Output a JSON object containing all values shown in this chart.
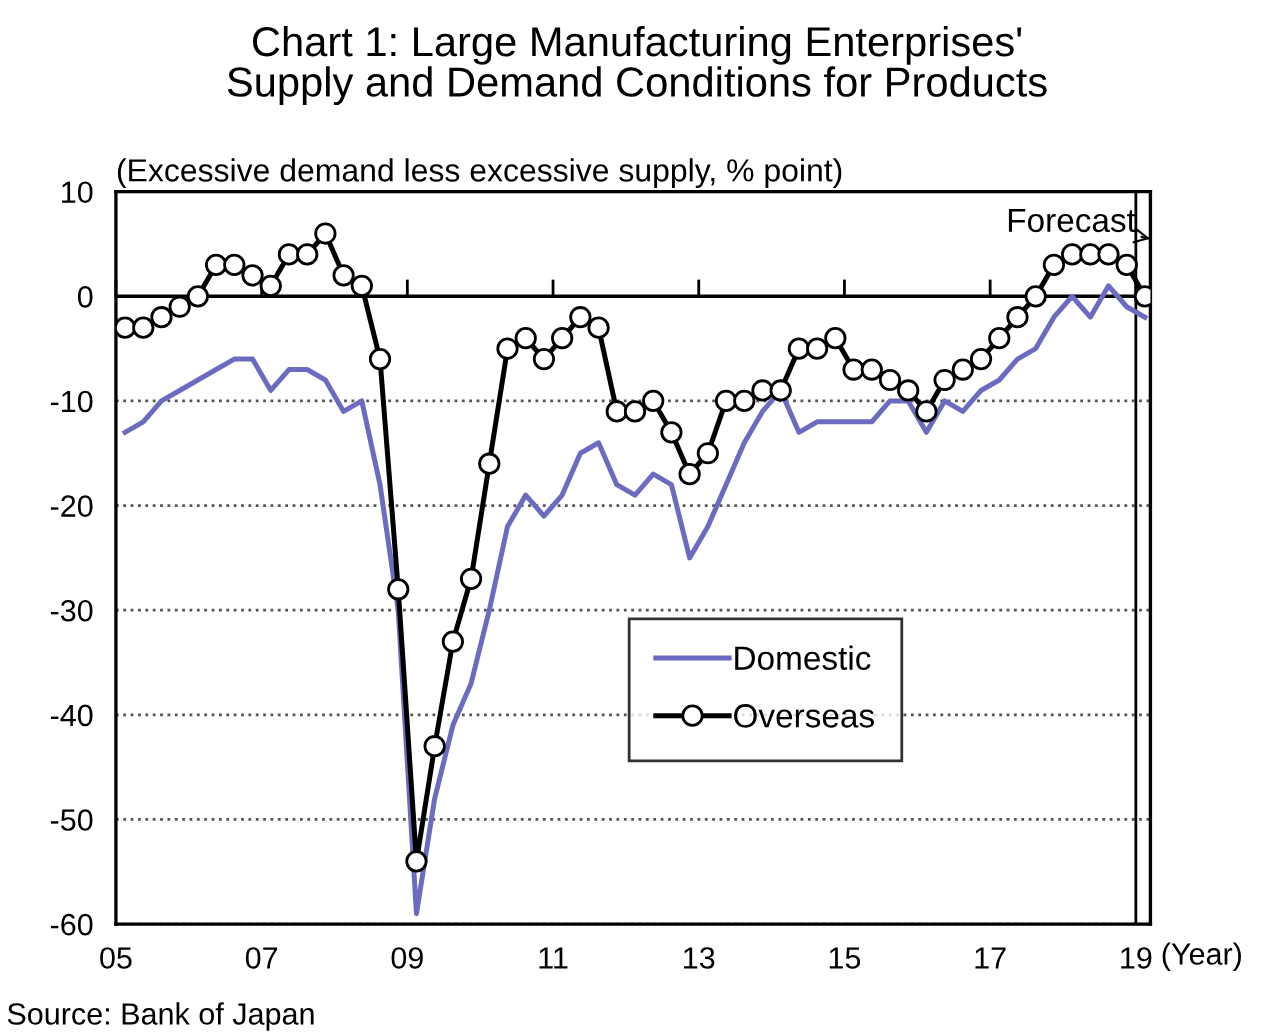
{
  "chart_data": {
    "type": "line",
    "title": "Chart 1: Large Manufacturing Enterprises'\nSupply and Demand Conditions for Products",
    "ylabel": "(Excessive demand less excessive supply, % point)",
    "xlabel": "(Year)",
    "annotations": [
      "Source: Bank of Japan"
    ],
    "x": [
      2005.125,
      2005.375,
      2005.625,
      2005.875,
      2006.125,
      2006.375,
      2006.625,
      2006.875,
      2007.125,
      2007.375,
      2007.625,
      2007.875,
      2008.125,
      2008.375,
      2008.625,
      2008.875,
      2009.125,
      2009.375,
      2009.625,
      2009.875,
      2010.125,
      2010.375,
      2010.625,
      2010.875,
      2011.125,
      2011.375,
      2011.625,
      2011.875,
      2012.125,
      2012.375,
      2012.625,
      2012.875,
      2013.125,
      2013.375,
      2013.625,
      2013.875,
      2014.125,
      2014.375,
      2014.625,
      2014.875,
      2015.125,
      2015.375,
      2015.625,
      2015.875,
      2016.125,
      2016.375,
      2016.625,
      2016.875,
      2017.125,
      2017.375,
      2017.625,
      2017.875,
      2018.125,
      2018.375,
      2018.625,
      2018.875,
      2019.125
    ],
    "series": [
      {
        "name": "Domestic",
        "color": "#6b6bbf",
        "marker": "none",
        "values": [
          -13,
          -12,
          -10,
          -9,
          -8,
          -7,
          -6,
          -6,
          -9,
          -7,
          -7,
          -8,
          -11,
          -10,
          -18,
          -30,
          -59,
          -48,
          -41,
          -37,
          -30,
          -22,
          -19,
          -21,
          -19,
          -15,
          -14,
          -18,
          -19,
          -17,
          -18,
          -25,
          -22,
          -18,
          -14,
          -11,
          -9,
          -13,
          -12,
          -12,
          -12,
          -12,
          -10,
          -10,
          -13,
          -10,
          -11,
          -9,
          -8,
          -6,
          -5,
          -2,
          0,
          -2,
          1,
          -1,
          -2
        ]
      },
      {
        "name": "Overseas",
        "color": "#000000",
        "marker": "circle",
        "values": [
          -3,
          -3,
          -2,
          -1,
          0,
          3,
          3,
          2,
          1,
          4,
          4,
          6,
          2,
          1,
          -6,
          -28,
          -54,
          -43,
          -33,
          -27,
          -16,
          -5,
          -4,
          -6,
          -4,
          -2,
          -3,
          -11,
          -11,
          -10,
          -13,
          -17,
          -15,
          -10,
          -10,
          -9,
          -9,
          -5,
          -5,
          -4,
          -7,
          -7,
          -8,
          -9,
          -11,
          -8,
          -7,
          -6,
          -4,
          -2,
          0,
          3,
          4,
          4,
          4,
          3,
          0
        ]
      }
    ],
    "xlim": [
      2005,
      2019.2
    ],
    "xticks": [
      {
        "value": 2005,
        "label": "05"
      },
      {
        "value": 2007,
        "label": "07"
      },
      {
        "value": 2009,
        "label": "09"
      },
      {
        "value": 2011,
        "label": "11"
      },
      {
        "value": 2013,
        "label": "13"
      },
      {
        "value": 2015,
        "label": "15"
      },
      {
        "value": 2017,
        "label": "17"
      },
      {
        "value": 2019,
        "label": "19"
      }
    ],
    "ylim": [
      -60,
      10
    ],
    "yticks": [
      10,
      0,
      -10,
      -20,
      -30,
      -40,
      -50,
      -60
    ],
    "grid": "y",
    "legend": "right",
    "line_style": "solid",
    "ref_lines": [
      {
        "axis": "y",
        "value": 0,
        "label": null,
        "color": "#000000",
        "line_style": "solid"
      },
      {
        "axis": "x",
        "value": 2019,
        "label": "Forecast",
        "color": "#000000",
        "line_style": "solid"
      }
    ]
  }
}
